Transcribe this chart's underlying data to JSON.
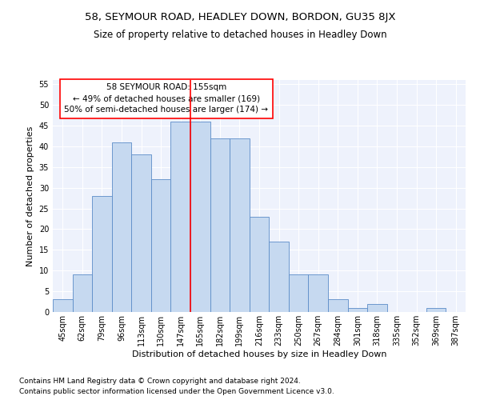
{
  "title": "58, SEYMOUR ROAD, HEADLEY DOWN, BORDON, GU35 8JX",
  "subtitle": "Size of property relative to detached houses in Headley Down",
  "xlabel": "Distribution of detached houses by size in Headley Down",
  "ylabel": "Number of detached properties",
  "footnote1": "Contains HM Land Registry data © Crown copyright and database right 2024.",
  "footnote2": "Contains public sector information licensed under the Open Government Licence v3.0.",
  "annotation_line1": "58 SEYMOUR ROAD: 155sqm",
  "annotation_line2": "← 49% of detached houses are smaller (169)",
  "annotation_line3": "50% of semi-detached houses are larger (174) →",
  "bar_labels": [
    "45sqm",
    "62sqm",
    "79sqm",
    "96sqm",
    "113sqm",
    "130sqm",
    "147sqm",
    "165sqm",
    "182sqm",
    "199sqm",
    "216sqm",
    "233sqm",
    "250sqm",
    "267sqm",
    "284sqm",
    "301sqm",
    "318sqm",
    "335sqm",
    "352sqm",
    "369sqm",
    "387sqm"
  ],
  "bar_values": [
    3,
    9,
    28,
    41,
    38,
    32,
    46,
    46,
    42,
    42,
    23,
    17,
    9,
    9,
    3,
    1,
    2,
    0,
    0,
    1,
    0
  ],
  "bar_color": "#c6d9f0",
  "bar_edge_color": "#5b8cc8",
  "background_color": "#eef2fc",
  "ylim": [
    0,
    56
  ],
  "yticks": [
    0,
    5,
    10,
    15,
    20,
    25,
    30,
    35,
    40,
    45,
    50,
    55
  ],
  "title_fontsize": 9.5,
  "subtitle_fontsize": 8.5,
  "axis_label_fontsize": 8,
  "tick_fontsize": 7,
  "annotation_fontsize": 7.5,
  "footnote_fontsize": 6.5
}
